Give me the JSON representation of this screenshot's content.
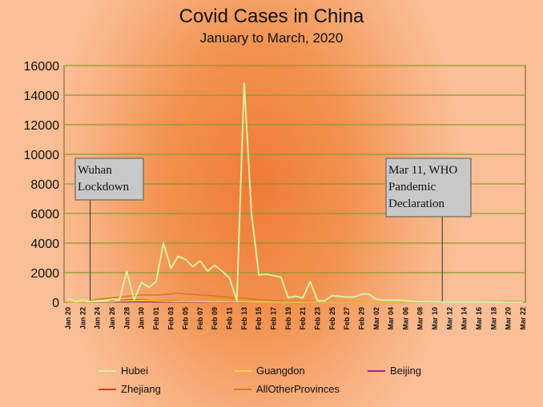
{
  "chart_data": {
    "type": "line",
    "title": "Covid Cases in China",
    "subtitle": "January to March, 2020",
    "xlabel": "",
    "ylabel": "",
    "ylim": [
      0,
      16000
    ],
    "yticks": [
      0,
      2000,
      4000,
      6000,
      8000,
      10000,
      12000,
      14000,
      16000
    ],
    "grid": true,
    "legend_position": "bottom",
    "x": [
      "Jan 20",
      "Jan 21",
      "Jan 22",
      "Jan 23",
      "Jan 24",
      "Jan 25",
      "Jan 26",
      "Jan 27",
      "Jan 28",
      "Jan 29",
      "Jan 30",
      "Jan 31",
      "Feb 01",
      "Feb 02",
      "Feb 03",
      "Feb 04",
      "Feb 05",
      "Feb 06",
      "Feb 07",
      "Feb 08",
      "Feb 09",
      "Feb 10",
      "Feb 11",
      "Feb 12",
      "Feb 13",
      "Feb 14",
      "Feb 15",
      "Feb 16",
      "Feb 17",
      "Feb 18",
      "Feb 19",
      "Feb 20",
      "Feb 21",
      "Feb 22",
      "Feb 23",
      "Feb 24",
      "Feb 25",
      "Feb 26",
      "Feb 27",
      "Feb 28",
      "Feb 29",
      "Mar 01",
      "Mar 02",
      "Mar 03",
      "Mar 04",
      "Mar 05",
      "Mar 06",
      "Mar 07",
      "Mar 08",
      "Mar 09",
      "Mar 10",
      "Mar 11",
      "Mar 12",
      "Mar 13",
      "Mar 14",
      "Mar 15",
      "Mar 16",
      "Mar 17",
      "Mar 18",
      "Mar 19",
      "Mar 20",
      "Mar 21",
      "Mar 22"
    ],
    "xtick_labels": [
      "Jan 20",
      "Jan 22",
      "Jan 24",
      "Jan 26",
      "Jan 28",
      "Jan 30",
      "Feb 01",
      "Feb 03",
      "Feb 05",
      "Feb 07",
      "Feb 09",
      "Feb 11",
      "Feb 13",
      "Feb 15",
      "Feb 17",
      "Feb 19",
      "Feb 21",
      "Feb 23",
      "Feb 25",
      "Feb 27",
      "Feb 29",
      "Mar 02",
      "Mar 04",
      "Mar 06",
      "Mar 08",
      "Mar 10",
      "Mar 12",
      "Mar 14",
      "Mar 16",
      "Mar 18",
      "Mar 20",
      "Mar 22"
    ],
    "series": [
      {
        "name": "Hubei",
        "color": "#d8f0a0",
        "values": [
          250,
          50,
          150,
          50,
          100,
          100,
          200,
          150,
          2100,
          150,
          1350,
          1000,
          1400,
          4000,
          2300,
          3100,
          2900,
          2400,
          2800,
          2100,
          2500,
          2100,
          1650,
          100,
          14800,
          6000,
          1850,
          1900,
          1800,
          1700,
          300,
          400,
          300,
          1400,
          100,
          100,
          450,
          400,
          350,
          350,
          550,
          550,
          200,
          150,
          150,
          150,
          100,
          50,
          50,
          30,
          20,
          10,
          10,
          5,
          5,
          5,
          5,
          5,
          5,
          5,
          5,
          5,
          5
        ]
      },
      {
        "name": "Guangdon",
        "color": "#f4d840",
        "values": [
          0,
          0,
          20,
          30,
          40,
          50,
          60,
          80,
          90,
          110,
          120,
          110,
          90,
          80,
          70,
          60,
          55,
          50,
          45,
          40,
          35,
          30,
          25,
          22,
          20,
          15,
          12,
          10,
          8,
          6,
          5,
          4,
          3,
          3,
          2,
          2,
          2,
          1,
          1,
          1,
          1,
          1,
          1,
          1,
          1,
          1,
          1,
          1,
          1,
          1,
          1,
          1,
          1,
          1,
          1,
          1,
          1,
          1,
          1,
          1,
          1,
          1,
          1
        ]
      },
      {
        "name": "Beijing",
        "color": "#b0208a",
        "values": [
          0,
          0,
          10,
          15,
          20,
          25,
          30,
          35,
          40,
          45,
          40,
          38,
          35,
          30,
          28,
          25,
          22,
          20,
          18,
          15,
          12,
          10,
          8,
          6,
          5,
          4,
          3,
          3,
          2,
          2,
          2,
          1,
          1,
          1,
          1,
          1,
          1,
          1,
          1,
          1,
          1,
          1,
          1,
          1,
          1,
          1,
          1,
          1,
          1,
          1,
          1,
          1,
          1,
          1,
          1,
          1,
          1,
          1,
          1,
          1,
          1,
          1,
          1
        ]
      },
      {
        "name": "Zhejiang",
        "color": "#e03a10",
        "values": [
          0,
          0,
          10,
          30,
          50,
          80,
          100,
          120,
          150,
          170,
          160,
          130,
          120,
          110,
          100,
          80,
          60,
          50,
          40,
          30,
          25,
          20,
          15,
          12,
          10,
          8,
          6,
          5,
          4,
          3,
          2,
          2,
          1,
          1,
          1,
          1,
          1,
          1,
          1,
          1,
          1,
          1,
          1,
          1,
          1,
          1,
          1,
          1,
          1,
          1,
          1,
          1,
          1,
          1,
          1,
          1,
          1,
          1,
          1,
          1,
          1,
          1,
          1
        ]
      },
      {
        "name": "AllOtherProvinces",
        "color": "#d87828",
        "values": [
          0,
          10,
          50,
          100,
          200,
          250,
          300,
          350,
          400,
          430,
          500,
          500,
          480,
          520,
          560,
          620,
          560,
          530,
          500,
          470,
          420,
          370,
          330,
          300,
          280,
          220,
          180,
          150,
          120,
          100,
          80,
          70,
          60,
          50,
          40,
          35,
          30,
          25,
          20,
          18,
          15,
          12,
          10,
          10,
          8,
          8,
          6,
          5,
          5,
          5,
          5,
          5,
          5,
          5,
          5,
          8,
          10,
          15,
          30,
          40,
          60,
          50,
          40
        ]
      }
    ],
    "annotations": [
      {
        "x": "Jan 23",
        "lines": [
          "Wuhan",
          "Lockdown"
        ]
      },
      {
        "x": "Mar 11",
        "lines": [
          "Mar 11, WHO",
          "Pandemic",
          "Declaration"
        ]
      }
    ]
  }
}
